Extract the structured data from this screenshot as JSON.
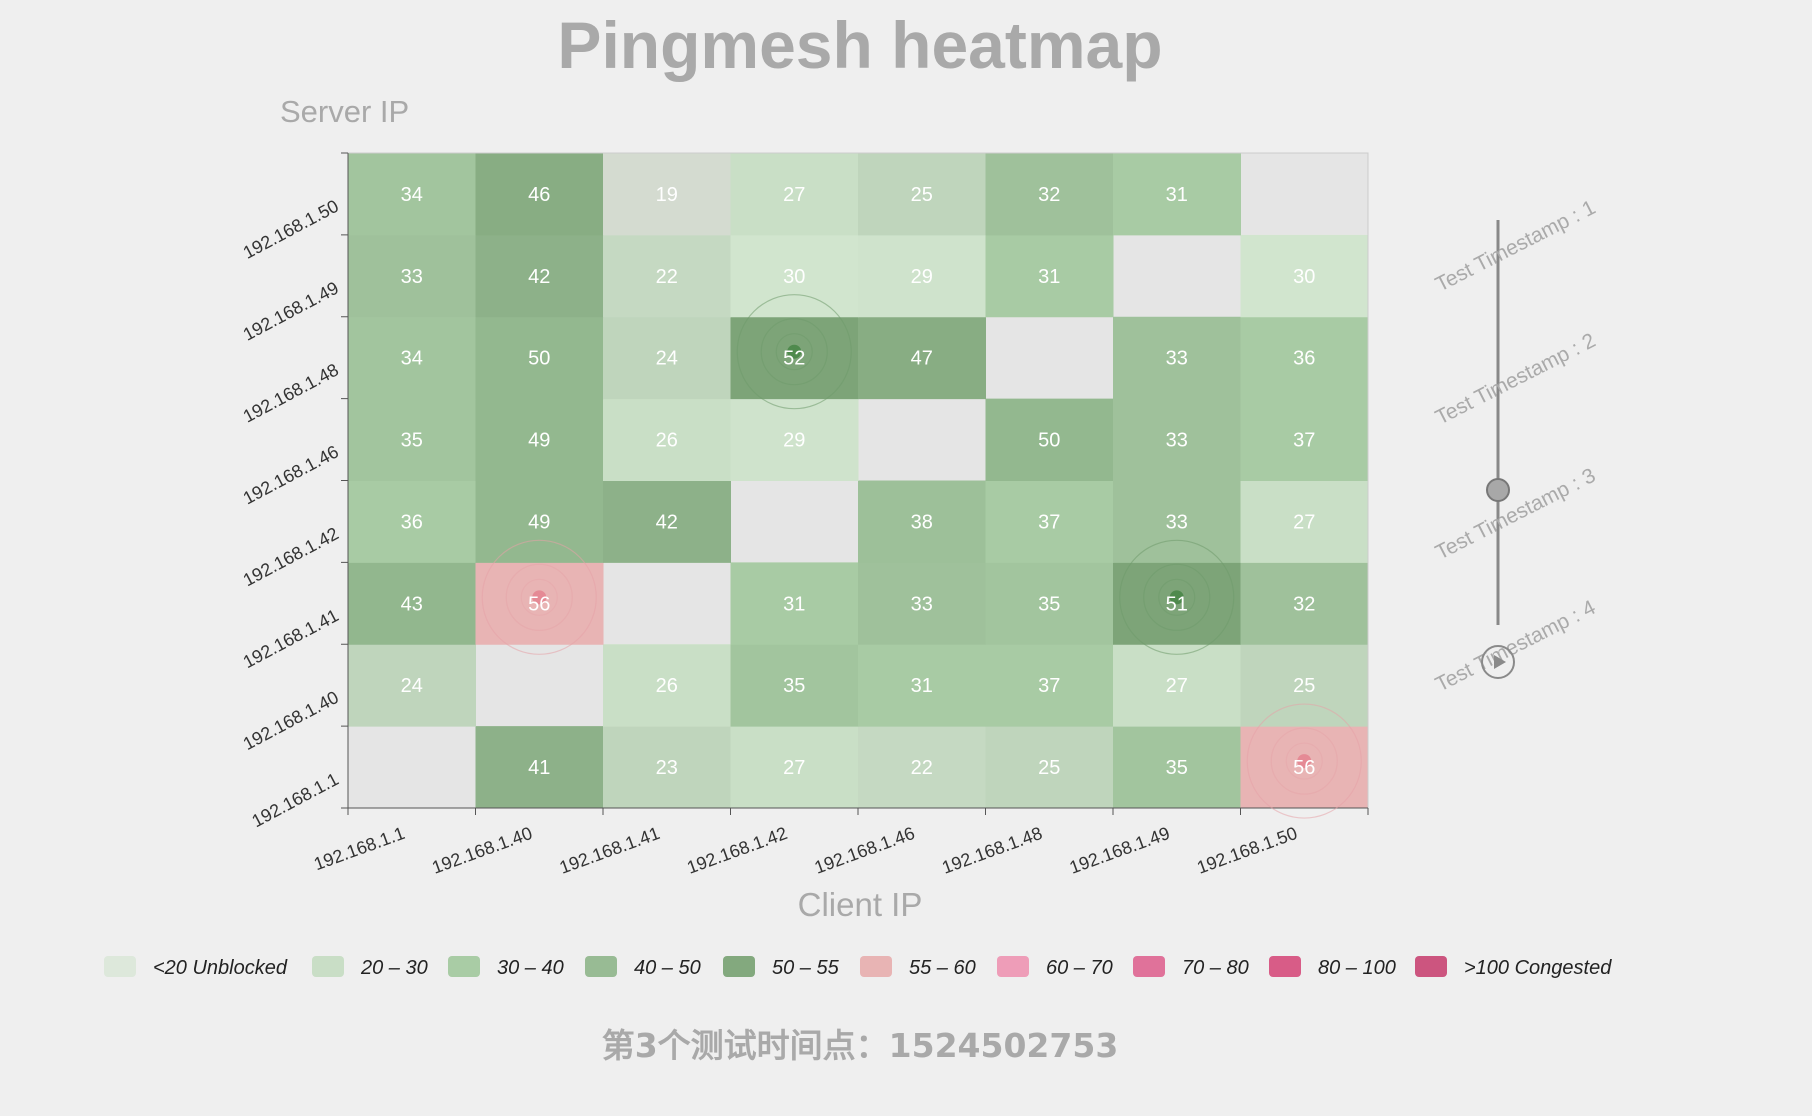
{
  "chart_data": {
    "type": "heatmap",
    "title": "Pingmesh heatmap",
    "ylabel": "Server IP",
    "xlabel": "Client IP",
    "x_categories": [
      "192.168.1.1",
      "192.168.1.40",
      "192.168.1.41",
      "192.168.1.42",
      "192.168.1.46",
      "192.168.1.48",
      "192.168.1.49",
      "192.168.1.50"
    ],
    "y_categories": [
      "192.168.1.1",
      "192.168.1.40",
      "192.168.1.41",
      "192.168.1.42",
      "192.168.1.46",
      "192.168.1.48",
      "192.168.1.49",
      "192.168.1.50"
    ],
    "cells": [
      [
        1,
        0,
        41
      ],
      [
        2,
        0,
        23
      ],
      [
        3,
        0,
        27
      ],
      [
        4,
        0,
        22
      ],
      [
        5,
        0,
        25
      ],
      [
        6,
        0,
        35
      ],
      [
        7,
        0,
        56
      ],
      [
        0,
        1,
        24
      ],
      [
        2,
        1,
        26
      ],
      [
        3,
        1,
        35
      ],
      [
        4,
        1,
        31
      ],
      [
        5,
        1,
        37
      ],
      [
        6,
        1,
        27
      ],
      [
        7,
        1,
        25
      ],
      [
        0,
        2,
        43
      ],
      [
        1,
        2,
        56
      ],
      [
        3,
        2,
        31
      ],
      [
        4,
        2,
        33
      ],
      [
        5,
        2,
        35
      ],
      [
        6,
        2,
        51
      ],
      [
        7,
        2,
        32
      ],
      [
        0,
        3,
        36
      ],
      [
        1,
        3,
        49
      ],
      [
        2,
        3,
        42
      ],
      [
        4,
        3,
        38
      ],
      [
        5,
        3,
        37
      ],
      [
        6,
        3,
        33
      ],
      [
        7,
        3,
        27
      ],
      [
        0,
        4,
        35
      ],
      [
        1,
        4,
        49
      ],
      [
        2,
        4,
        26
      ],
      [
        3,
        4,
        29
      ],
      [
        5,
        4,
        50
      ],
      [
        6,
        4,
        33
      ],
      [
        7,
        4,
        37
      ],
      [
        0,
        5,
        34
      ],
      [
        1,
        5,
        50
      ],
      [
        2,
        5,
        24
      ],
      [
        3,
        5,
        52
      ],
      [
        4,
        5,
        47
      ],
      [
        6,
        5,
        33
      ],
      [
        7,
        5,
        36
      ],
      [
        0,
        6,
        33
      ],
      [
        1,
        6,
        42
      ],
      [
        2,
        6,
        22
      ],
      [
        3,
        6,
        30
      ],
      [
        4,
        6,
        29
      ],
      [
        5,
        6,
        31
      ],
      [
        7,
        6,
        30
      ],
      [
        0,
        7,
        34
      ],
      [
        1,
        7,
        46
      ],
      [
        2,
        7,
        19
      ],
      [
        3,
        7,
        27
      ],
      [
        4,
        7,
        25
      ],
      [
        5,
        7,
        32
      ],
      [
        6,
        7,
        31
      ]
    ],
    "highlighted_cells": [
      [
        3,
        5
      ],
      [
        1,
        2
      ],
      [
        6,
        2
      ],
      [
        7,
        0
      ]
    ],
    "legend": [
      {
        "label": "<20 Unblocked",
        "color": "#dde8db"
      },
      {
        "label": "20 – 30",
        "color": "#c9dec6"
      },
      {
        "label": "30 – 40",
        "color": "#a9cca5"
      },
      {
        "label": "40 – 50",
        "color": "#98bb94"
      },
      {
        "label": "50 – 55",
        "color": "#83a97e"
      },
      {
        "label": "55 – 60",
        "color": "#e8b4b4"
      },
      {
        "label": "60 – 70",
        "color": "#ee9db8"
      },
      {
        "label": "70 – 80",
        "color": "#e0729a"
      },
      {
        "label": "80 – 100",
        "color": "#d85c87"
      },
      {
        "label": ">100 Congested",
        "color": "#cc557f"
      }
    ],
    "empty_cell_color": "#e5e5e5",
    "grid": false,
    "legend_position": "bottom"
  },
  "timeline": {
    "items": [
      "Test Timestamp : 1",
      "Test Timestamp : 2",
      "Test Timestamp : 3",
      "Test Timestamp : 4"
    ],
    "current_index": 2
  },
  "footer": {
    "caption": "第3个测试时间点：1524502753"
  },
  "colors": {
    "title": "#a9a9a9",
    "axis_name": "#a9a9a9",
    "tick_label": "#333333",
    "cell_text": "#ffffff",
    "timeline_line": "#888888",
    "timeline_label": "#aaaaaa"
  }
}
